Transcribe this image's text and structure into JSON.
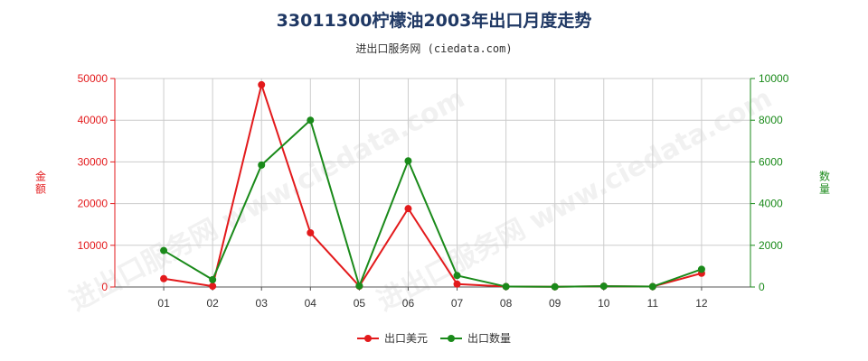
{
  "title": "33011300柠檬油2003年出口月度走势",
  "subtitle": "进出口服务网 (ciedata.com)",
  "watermark": "进出口服务网 www.ciedata.com",
  "colors": {
    "left_axis": "#e31a1c",
    "right_axis": "#1a8a1a",
    "grid": "#cccccc",
    "axis": "#555555"
  },
  "chart_data": {
    "type": "line",
    "categories": [
      "01",
      "02",
      "03",
      "04",
      "05",
      "06",
      "07",
      "08",
      "09",
      "10",
      "11",
      "12"
    ],
    "y_left": {
      "label": "金额",
      "ylim": [
        0,
        50000
      ],
      "ticks": [
        "0",
        "10000",
        "20000",
        "30000",
        "40000",
        "50000"
      ]
    },
    "y_right": {
      "label": "数量",
      "ylim": [
        0,
        10000
      ],
      "ticks": [
        "0",
        "2000",
        "4000",
        "6000",
        "8000",
        "10000"
      ]
    },
    "grid": true,
    "legend_position": "bottom-center",
    "series": [
      {
        "name": "出口美元",
        "axis": "left",
        "color": "#e31a1c",
        "values": [
          2000,
          200,
          48500,
          13000,
          200,
          18800,
          700,
          100,
          50,
          200,
          100,
          3300
        ]
      },
      {
        "name": "出口数量",
        "axis": "right",
        "color": "#1a8a1a",
        "values": [
          1750,
          350,
          5850,
          8000,
          50,
          6050,
          550,
          20,
          10,
          40,
          20,
          850
        ]
      }
    ]
  }
}
